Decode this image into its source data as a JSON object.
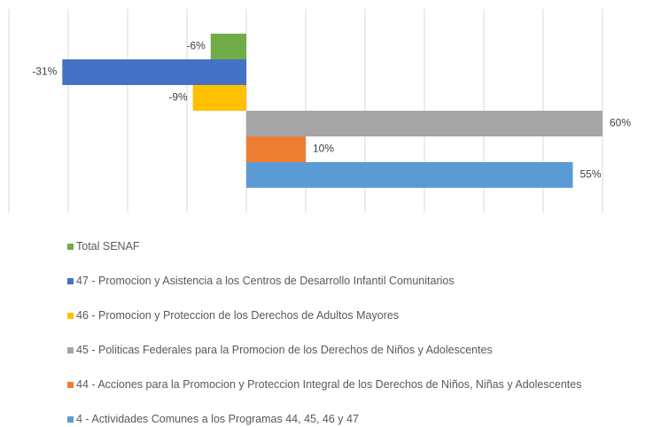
{
  "chart_data": {
    "type": "hbar",
    "xlim": [
      -40,
      60
    ],
    "xticks": [
      -40,
      -30,
      -20,
      -10,
      0,
      10,
      20,
      30,
      40,
      50,
      60
    ],
    "grid": true,
    "series": [
      {
        "name": "Total SENAF",
        "color": "#70ad47",
        "values": [
          -6
        ],
        "value_labels": [
          "-6%"
        ]
      },
      {
        "name": "47 - Promocion y Asistencia a los Centros de Desarrollo Infantil Comunitarios",
        "color": "#4472c4",
        "values": [
          -31
        ],
        "value_labels": [
          "-31%"
        ]
      },
      {
        "name": "46 - Promocion y Proteccion de los Derechos de Adultos Mayores",
        "color": "#ffc000",
        "values": [
          -9
        ],
        "value_labels": [
          "-9%"
        ]
      },
      {
        "name": "45 - Politicas Federales para la Promocion de los Derechos de Niños y Adolescentes",
        "color": "#a5a5a5",
        "values": [
          60
        ],
        "value_labels": [
          "60%"
        ]
      },
      {
        "name": "44 - Acciones para la Promocion y Proteccion Integral de los Derechos de Niños, Niñas y Adolescentes",
        "color": "#ed7d31",
        "values": [
          10
        ],
        "value_labels": [
          "10%"
        ]
      },
      {
        "name": "4 - Actividades Comunes a los Programas 44, 45, 46 y 47",
        "color": "#5b9bd5",
        "values": [
          55
        ],
        "value_labels": [
          "55%"
        ]
      }
    ]
  }
}
